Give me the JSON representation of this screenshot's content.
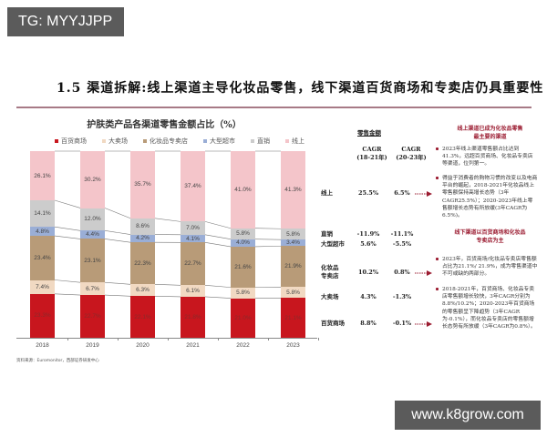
{
  "watermarks": {
    "top_left": "TG: MYYJJPP",
    "bottom_right": "www.k8grow.com"
  },
  "header": {
    "title": "1.5  渠道拆解:线上渠道主导化妆品零售，线下渠道百货商场和专卖店仍具重要性"
  },
  "chart_data": {
    "type": "bar",
    "stacked": true,
    "title": "护肤类产品各渠道零售金额占比（%）",
    "xlabel": "",
    "ylabel": "",
    "ylim": [
      0,
      100
    ],
    "grid": false,
    "legend_position": "top",
    "categories": [
      "2018",
      "2019",
      "2020",
      "2021",
      "2022",
      "2023"
    ],
    "series": [
      {
        "name": "百货商场",
        "color": "#c8161e",
        "values": [
          23.3,
          22.7,
          22.1,
          21.8,
          21.0,
          21.1
        ],
        "labels": [
          "23.3%",
          "22.7%",
          "22.1%",
          "21.8%",
          "21.0%",
          "21.1%"
        ]
      },
      {
        "name": "大卖场",
        "color": "#f1d9c2",
        "values": [
          7.4,
          6.7,
          6.3,
          6.1,
          5.8,
          5.8
        ],
        "labels": [
          "7.4%",
          "6.7%",
          "6.3%",
          "6.1%",
          "5.8%",
          "5.8%"
        ]
      },
      {
        "name": "化妆品专卖店",
        "color": "#b89b78",
        "values": [
          23.4,
          23.1,
          22.3,
          22.7,
          21.6,
          21.9
        ],
        "labels": [
          "23.4%",
          "23.1%",
          "22.3%",
          "22.7%",
          "21.6%",
          "21.9%"
        ]
      },
      {
        "name": "大型超市",
        "color": "#9aaed6",
        "values": [
          4.8,
          4.4,
          4.2,
          4.1,
          4.0,
          3.4
        ],
        "labels": [
          "4.8%",
          "4.4%",
          "4.2%",
          "4.1%",
          "4.0%",
          "3.4%"
        ]
      },
      {
        "name": "直销",
        "color": "#cccccc",
        "values": [
          14.1,
          12.0,
          8.6,
          7.0,
          5.8,
          5.8
        ],
        "labels": [
          "14.1%",
          "12.0%",
          "8.6%",
          "7.0%",
          "5.8%",
          "5.8%"
        ]
      },
      {
        "name": "线上",
        "color": "#f4c5ca",
        "values": [
          26.1,
          30.2,
          35.7,
          37.4,
          41.0,
          41.3
        ],
        "labels": [
          "26.1%",
          "30.2%",
          "35.7%",
          "37.4%",
          "41.0%",
          "41.3%"
        ]
      }
    ]
  },
  "source": "资料来源：Euromonitor，西部证券研发中心",
  "table": {
    "header": "零售金额",
    "col1": [
      "CAGR",
      "(18-21年)"
    ],
    "col2": [
      "CAGR",
      "(20-23年)"
    ],
    "rows": [
      {
        "label": "线上",
        "cagr_18_21": "25.5%",
        "cagr_20_23": "6.5%",
        "arrow": true
      },
      {
        "label": "直销",
        "cagr_18_21": "-11.9%",
        "cagr_20_23": "-11.1%",
        "arrow": false
      },
      {
        "label": "大型超市",
        "cagr_18_21": "5.6%",
        "cagr_20_23": "-5.5%",
        "arrow": false
      },
      {
        "label": "化妆品专卖店",
        "label_lines": [
          "化妆品",
          "专卖店"
        ],
        "cagr_18_21": "10.2%",
        "cagr_20_23": "0.8%",
        "arrow": true
      },
      {
        "label": "大卖场",
        "cagr_18_21": "4.3%",
        "cagr_20_23": "-1.3%",
        "arrow": false
      },
      {
        "label": "百货商场",
        "cagr_18_21": "8.8%",
        "cagr_20_23": "-0.1%",
        "arrow": true
      }
    ]
  },
  "notes": {
    "online": {
      "title": [
        "线上渠道已成为化妆品零售",
        "最主要的渠道"
      ],
      "bullets": [
        "2023年线上渠道零售额占比达到41.3%，远超百货商场、化妆品专卖店等渠道，位列第一。",
        "得益于消费者的购物习惯的改变以及电商平台的崛起，2018-2021年化妆品线上零售额保持高增长态势（3年CAGR25.5%）；2020-2023年线上零售额增长态势有所放缓(3年CAGR为6.5%)。"
      ]
    },
    "offline": {
      "title": [
        "线下渠道以百货商场和化妆品",
        "专卖店为主"
      ],
      "bullets": [
        "2023年，百货商场/化妆品专卖店零售额占比为21.1%/ 21.9%，成为零售渠道中不可或缺的两部分。",
        "2018-2021年，百货商场、化妆品专卖店零售额增长较快，3年CAGR分别为8.8%/10.2%；2020-2023年百货商场的零售额呈下降趋势（3年CAGR 为-0.1%），而化妆品专卖店的零售额增长态势有所放缓（3年CAGR为0.8%）。"
      ]
    }
  }
}
